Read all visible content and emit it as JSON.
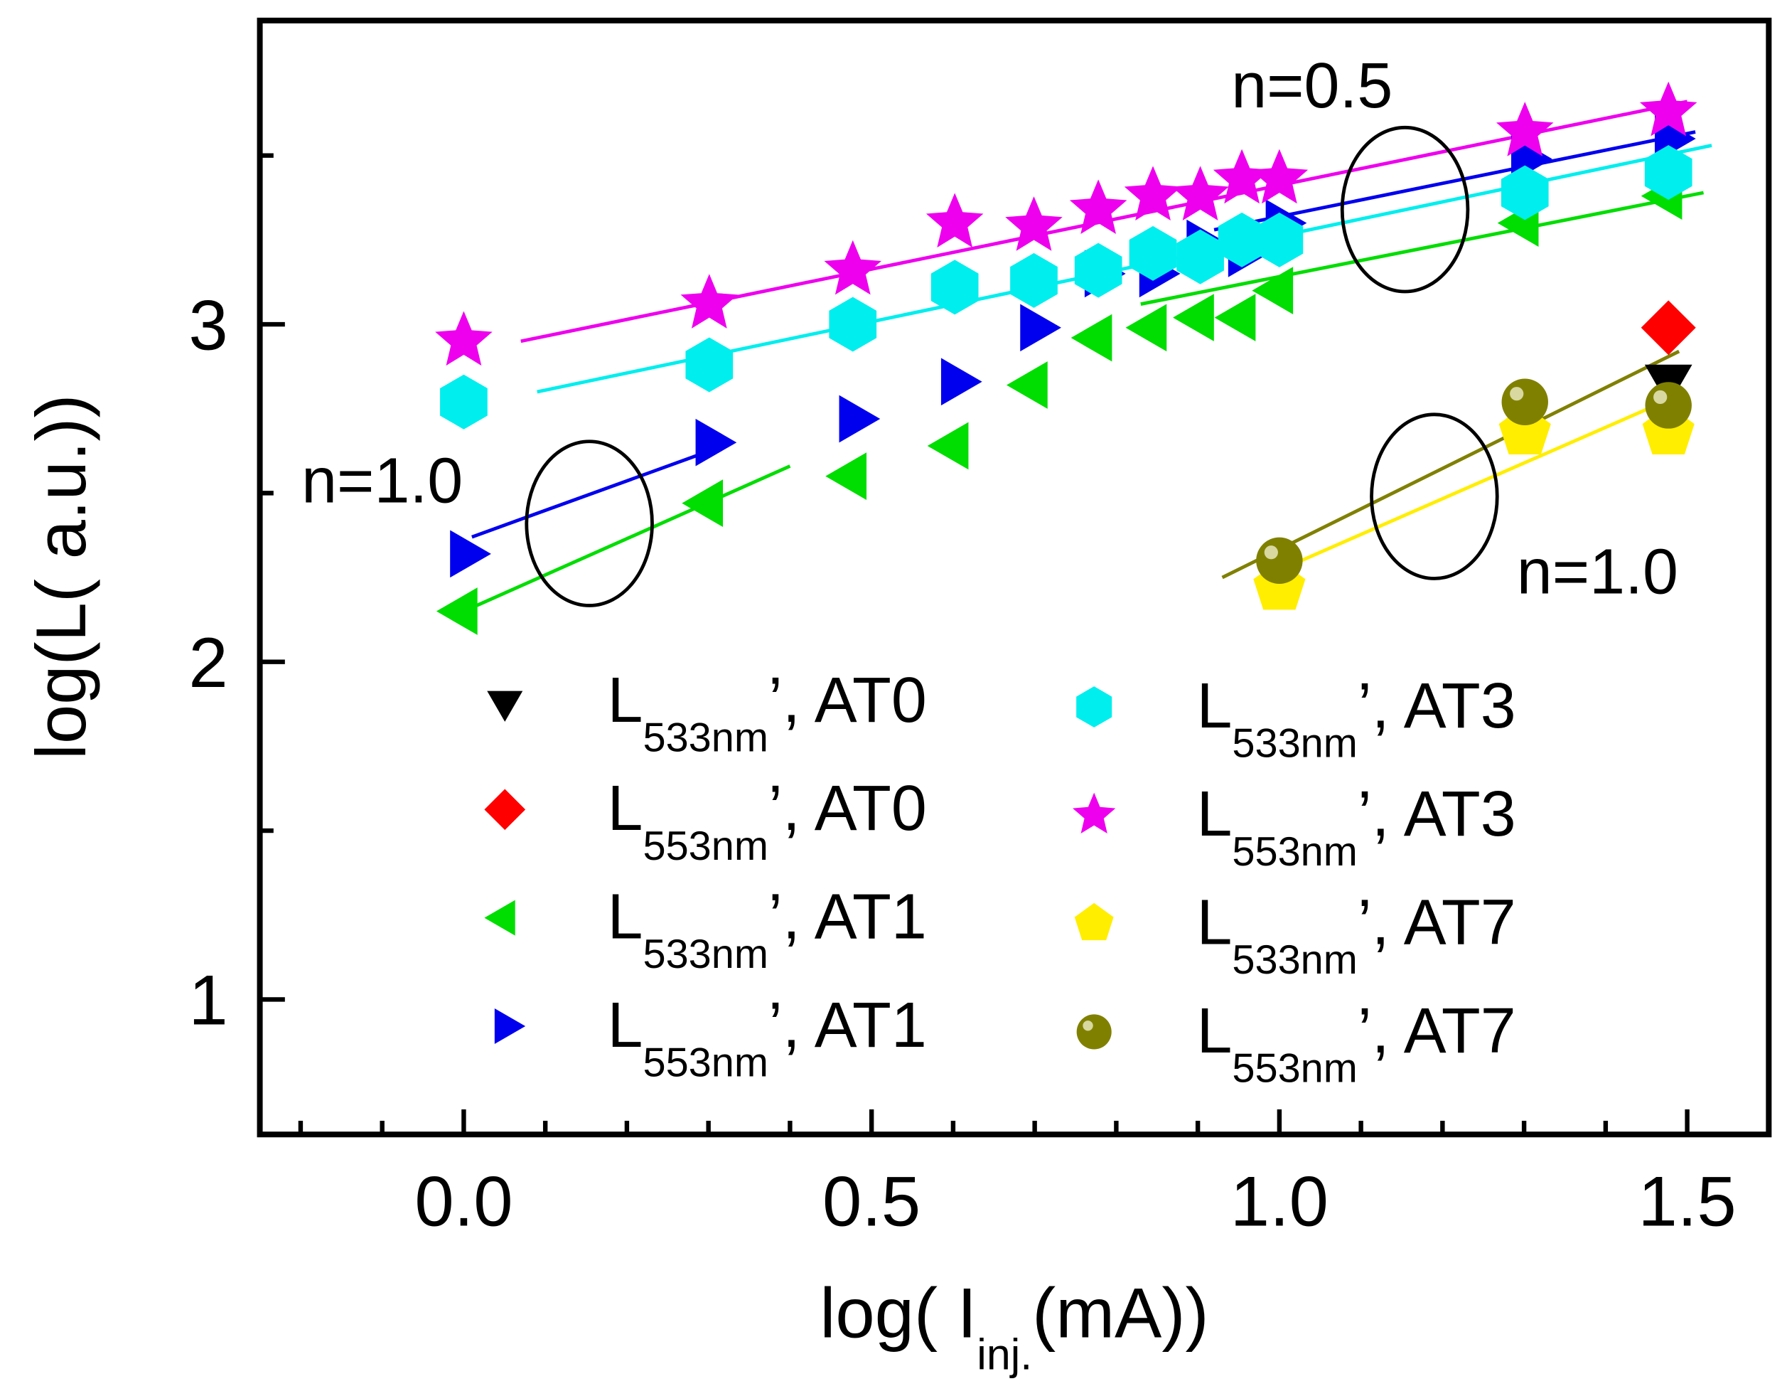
{
  "chart_data": {
    "type": "scatter",
    "xlabel": {
      "main": "log( I",
      "sub": "inj.",
      "rest": "(mA))"
    },
    "ylabel": "log(L( a.u.))",
    "xlim": [
      -0.25,
      1.6
    ],
    "ylim": [
      0.6,
      3.9
    ],
    "xticks": [
      0.0,
      0.5,
      1.0,
      1.5
    ],
    "xtick_labels": [
      "0.0",
      "0.5",
      "1.0",
      "1.5"
    ],
    "yticks": [
      1,
      2,
      3
    ],
    "ytick_labels": [
      "1",
      "2",
      "3"
    ],
    "grid": false,
    "legend_placement": "bottom-center",
    "series": [
      {
        "name": "L533nm, AT0",
        "label": {
          "main": "L",
          "sub": "533nm",
          "rest": "’, AT0"
        },
        "marker": "triangle-down",
        "color": "#000000",
        "x": [
          1.477
        ],
        "y": [
          2.84
        ]
      },
      {
        "name": "L553nm, AT0",
        "label": {
          "main": "L",
          "sub": "553nm",
          "rest": "’, AT0"
        },
        "marker": "diamond",
        "color": "#ff0000",
        "x": [
          1.477
        ],
        "y": [
          2.99
        ]
      },
      {
        "name": "L533nm, AT1",
        "label": {
          "main": "L",
          "sub": "533nm",
          "rest": "’, AT1"
        },
        "marker": "triangle-left",
        "color": "#00dd00",
        "x": [
          0,
          0.301,
          0.477,
          0.602,
          0.699,
          0.778,
          0.845,
          0.903,
          0.954,
          1.0,
          1.301,
          1.477
        ],
        "y": [
          2.15,
          2.47,
          2.55,
          2.64,
          2.82,
          2.96,
          2.99,
          3.02,
          3.02,
          3.1,
          3.3,
          3.38
        ]
      },
      {
        "name": "L553nm, AT1",
        "label": {
          "main": "L",
          "sub": "553nm",
          "rest": "’, AT1"
        },
        "marker": "triangle-right",
        "color": "#0000ee",
        "x": [
          0,
          0.301,
          0.477,
          0.602,
          0.699,
          0.778,
          0.845,
          0.903,
          0.954,
          1.0,
          1.301,
          1.477
        ],
        "y": [
          2.32,
          2.65,
          2.72,
          2.83,
          2.99,
          3.15,
          3.15,
          3.24,
          3.21,
          3.3,
          3.49,
          3.55
        ]
      },
      {
        "name": "L533nm, AT3",
        "label": {
          "main": "L",
          "sub": "533nm",
          "rest": "’, AT3"
        },
        "marker": "hexagon",
        "color": "#00eeee",
        "x": [
          0,
          0.301,
          0.477,
          0.602,
          0.699,
          0.778,
          0.845,
          0.903,
          0.954,
          1.0,
          1.301,
          1.477
        ],
        "y": [
          2.77,
          2.88,
          3.0,
          3.11,
          3.13,
          3.16,
          3.21,
          3.2,
          3.25,
          3.25,
          3.39,
          3.45
        ]
      },
      {
        "name": "L553nm, AT3",
        "label": {
          "main": "L",
          "sub": "553nm",
          "rest": "’, AT3"
        },
        "marker": "star",
        "color": "#ee00ee",
        "x": [
          0,
          0.301,
          0.477,
          0.602,
          0.699,
          0.778,
          0.845,
          0.903,
          0.954,
          1.0,
          1.301,
          1.477
        ],
        "y": [
          2.95,
          3.06,
          3.16,
          3.3,
          3.29,
          3.34,
          3.38,
          3.38,
          3.43,
          3.43,
          3.57,
          3.63
        ]
      },
      {
        "name": "L533nm, AT7",
        "label": {
          "main": "L",
          "sub": "533nm",
          "rest": "’, AT7"
        },
        "marker": "pentagon",
        "color": "#ffee00",
        "x": [
          1.0,
          1.301,
          1.477
        ],
        "y": [
          2.22,
          2.68,
          2.68
        ]
      },
      {
        "name": "L553nm, AT7",
        "label": {
          "main": "L",
          "sub": "553nm",
          "rest": "’, AT7"
        },
        "marker": "sphere",
        "color": "#808000",
        "x": [
          1.0,
          1.301,
          1.477
        ],
        "y": [
          2.3,
          2.77,
          2.76
        ]
      }
    ],
    "fit_lines": [
      {
        "color": "#ee00ee",
        "x": [
          0.07,
          1.5
        ],
        "y": [
          2.95,
          3.66
        ]
      },
      {
        "color": "#00eeee",
        "x": [
          0.09,
          1.53
        ],
        "y": [
          2.8,
          3.53
        ]
      },
      {
        "color": "#0000ee",
        "x": [
          0.01,
          0.33
        ],
        "y": [
          2.37,
          2.65
        ]
      },
      {
        "color": "#0000ee",
        "x": [
          0.92,
          1.51
        ],
        "y": [
          3.28,
          3.57
        ]
      },
      {
        "color": "#00dd00",
        "x": [
          0.0,
          0.4
        ],
        "y": [
          2.15,
          2.58
        ]
      },
      {
        "color": "#00dd00",
        "x": [
          0.83,
          1.52
        ],
        "y": [
          3.06,
          3.39
        ]
      },
      {
        "color": "#808000",
        "x": [
          0.93,
          1.49
        ],
        "y": [
          2.25,
          2.92
        ]
      },
      {
        "color": "#ffee00",
        "x": [
          0.97,
          1.49
        ],
        "y": [
          2.24,
          2.79
        ]
      }
    ],
    "annotations": [
      {
        "text": "n=1.0",
        "x": -0.1,
        "y": 2.54
      },
      {
        "text": "n=0.5",
        "x": 1.04,
        "y": 3.71
      },
      {
        "text": "n=1.0",
        "x": 1.39,
        "y": 2.27
      }
    ],
    "ellipses": [
      {
        "cx": 0.154,
        "cy": 2.41,
        "rx": 0.077,
        "ry": 0.243
      },
      {
        "cx": 1.154,
        "cy": 3.34,
        "rx": 0.077,
        "ry": 0.243
      },
      {
        "cx": 1.19,
        "cy": 2.49,
        "rx": 0.077,
        "ry": 0.243
      }
    ]
  }
}
